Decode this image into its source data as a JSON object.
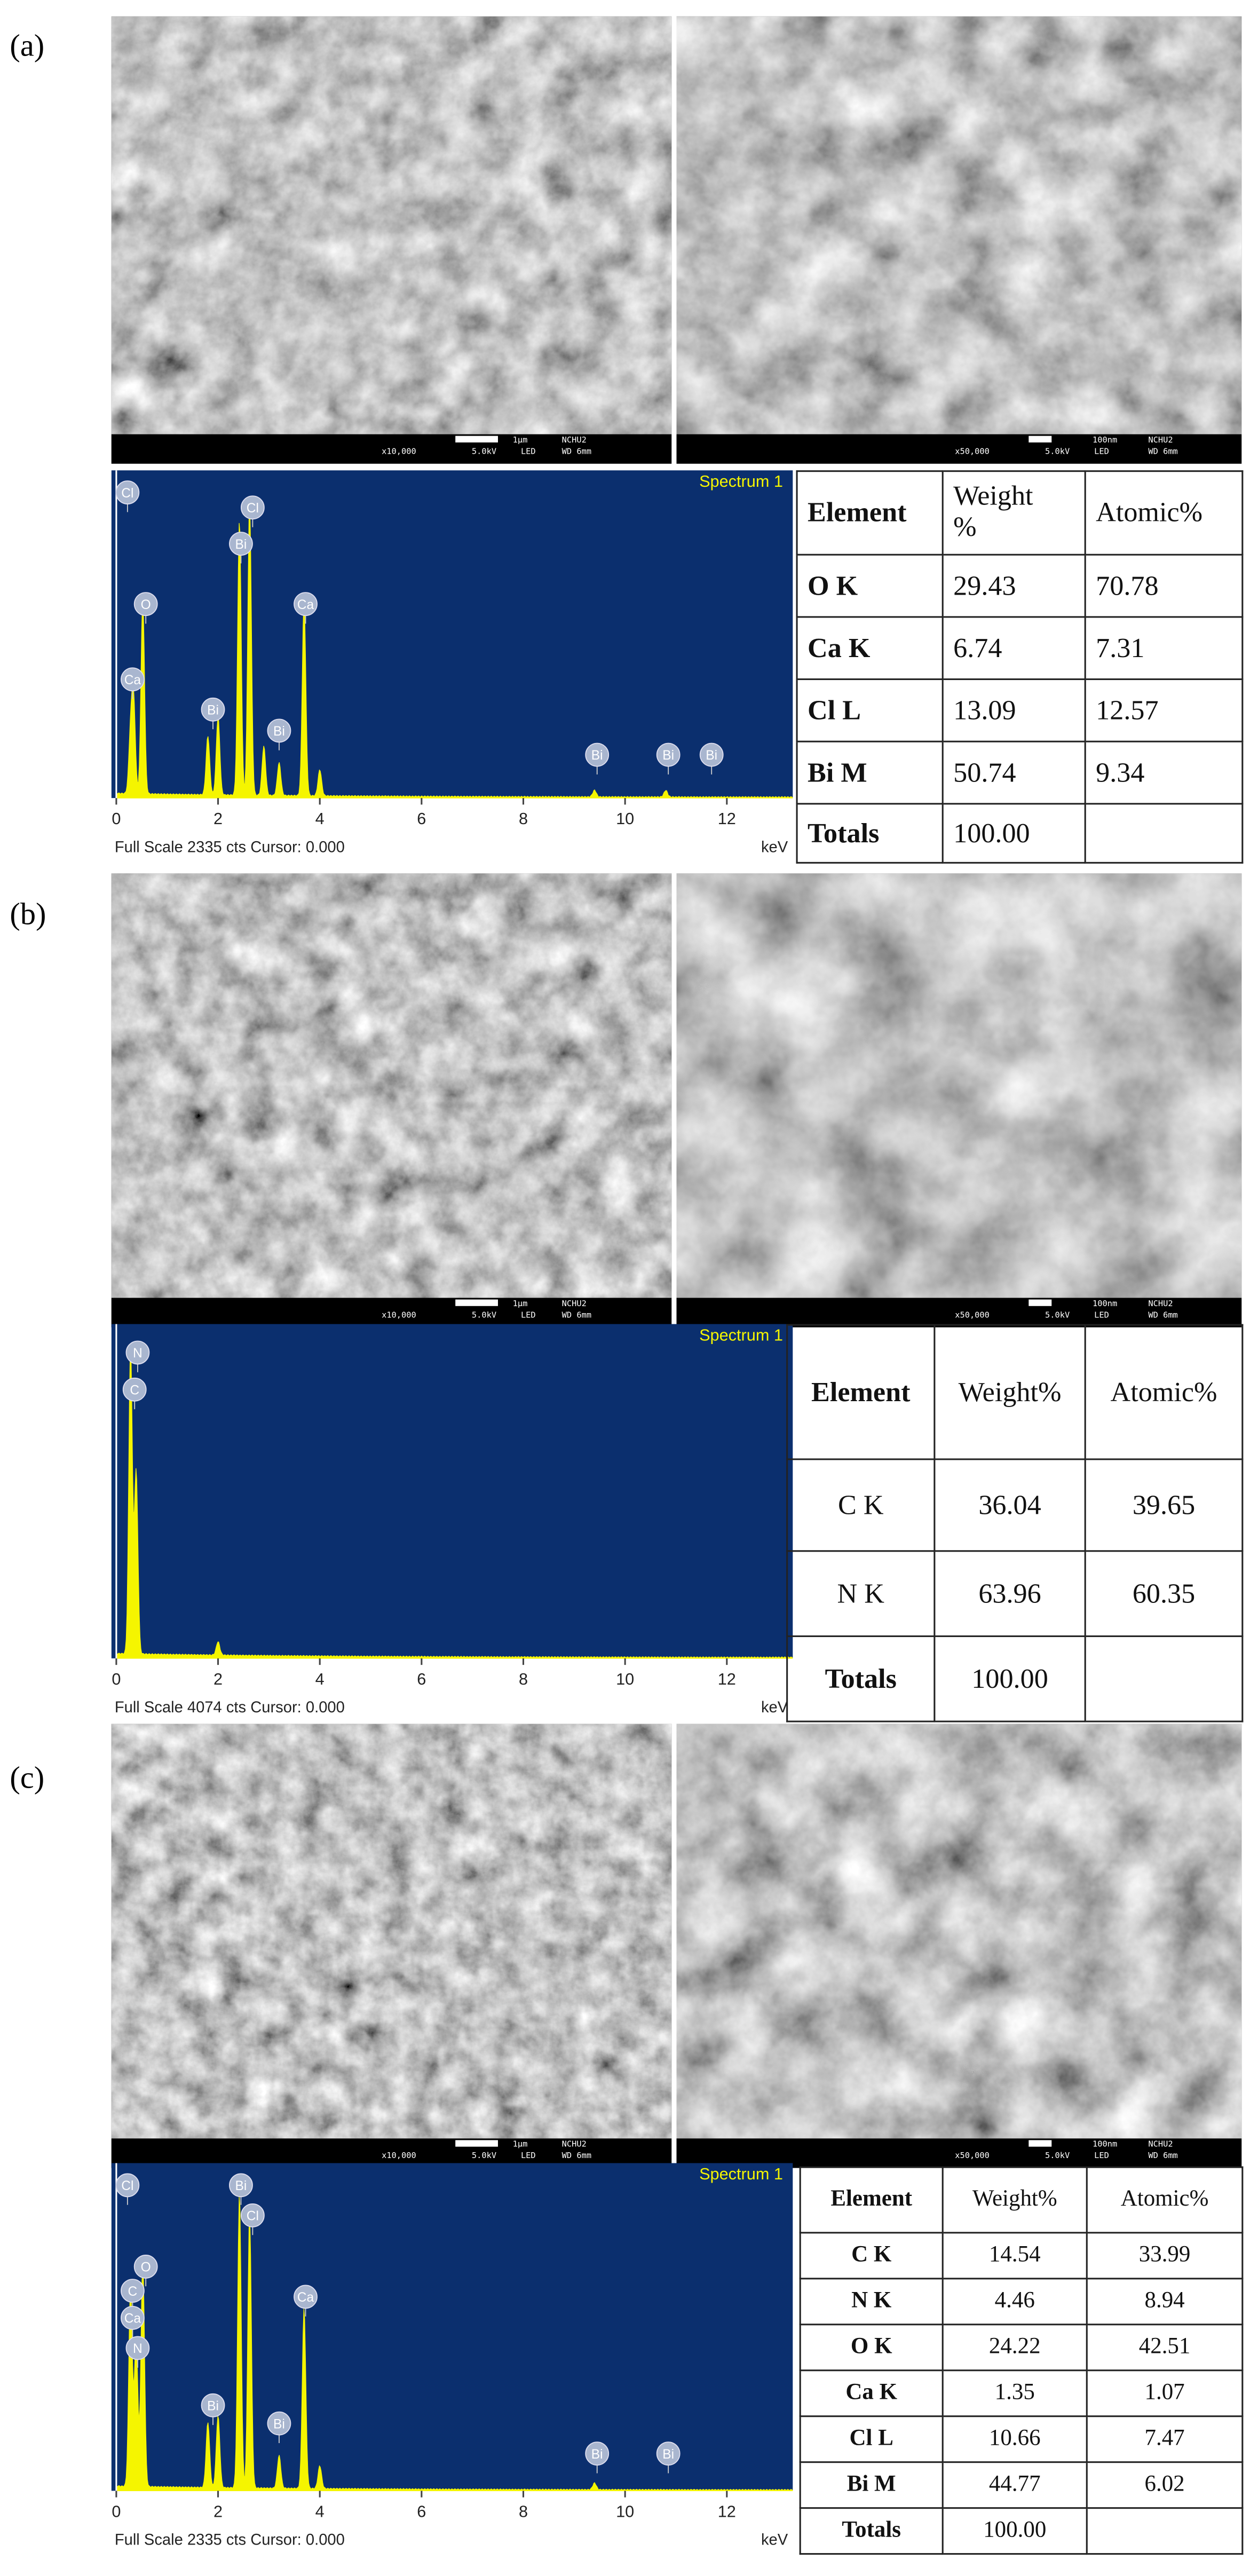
{
  "panels": [
    {
      "label": "(a)",
      "sem": [
        {
          "mag": "x10,000",
          "kv": "5.0kV",
          "det": "LED",
          "scale": "1μm",
          "id": "NCHU2",
          "wd": "WD 6mm"
        },
        {
          "mag": "x50,000",
          "kv": "5.0kV",
          "det": "LED",
          "scale": "100nm",
          "id": "NCHU2",
          "wd": "WD 6mm"
        }
      ],
      "spectrum": {
        "title": "Spectrum 1",
        "footer": "Full Scale 2335 cts Cursor: 0.000",
        "unit": "keV",
        "xlim": [
          0,
          13.2
        ],
        "xticks": [
          0,
          2,
          4,
          6,
          8,
          10,
          12
        ],
        "peak_labels": [
          "Cl",
          "Bi",
          "Cl",
          "O",
          "Ca",
          "Ca",
          "Bi",
          "Bi",
          "Bi",
          "Bi",
          "Bi"
        ]
      },
      "table": {
        "header": [
          "Element",
          "Weight %",
          "Atomic%"
        ],
        "rows": [
          [
            "O K",
            "29.43",
            "70.78"
          ],
          [
            "Ca K",
            "6.74",
            "7.31"
          ],
          [
            "Cl L",
            "13.09",
            "12.57"
          ],
          [
            "Bi M",
            "50.74",
            "9.34"
          ],
          [
            "Totals",
            "100.00",
            null
          ]
        ]
      }
    },
    {
      "label": "(b)",
      "sem": [
        {
          "mag": "x10,000",
          "kv": "5.0kV",
          "det": "LED",
          "scale": "1μm",
          "id": "NCHU2",
          "wd": "WD 6mm"
        },
        {
          "mag": "x50,000",
          "kv": "5.0kV",
          "det": "LED",
          "scale": "100nm",
          "id": "NCHU2",
          "wd": "WD 6mm"
        }
      ],
      "spectrum": {
        "title": "Spectrum 1",
        "footer": "Full Scale 4074 cts Cursor: 0.000",
        "unit": "keV",
        "xlim": [
          0,
          13.2
        ],
        "xticks": [
          0,
          2,
          4,
          6,
          8,
          10,
          12
        ],
        "peak_labels": [
          "N",
          "C"
        ]
      },
      "table": {
        "header": [
          "Element",
          "Weight%",
          "Atomic%"
        ],
        "rows": [
          [
            "C K",
            "36.04",
            "39.65"
          ],
          [
            "N K",
            "63.96",
            "60.35"
          ],
          [
            "Totals",
            "100.00",
            null
          ]
        ]
      }
    },
    {
      "label": "(c)",
      "sem": [
        {
          "mag": "x10,000",
          "kv": "5.0kV",
          "det": "LED",
          "scale": "1μm",
          "id": "NCHU2",
          "wd": "WD 6mm"
        },
        {
          "mag": "x50,000",
          "kv": "5.0kV",
          "det": "LED",
          "scale": "100nm",
          "id": "NCHU2",
          "wd": "WD 6mm"
        }
      ],
      "spectrum": {
        "title": "Spectrum 1",
        "footer": "Full Scale 2335 cts Cursor: 0.000",
        "unit": "keV",
        "xlim": [
          0,
          13.2
        ],
        "xticks": [
          0,
          2,
          4,
          6,
          8,
          10,
          12
        ],
        "peak_labels": [
          "Cl",
          "Bi",
          "Cl",
          "O",
          "C",
          "Ca",
          "N",
          "Ca",
          "Bi",
          "Bi",
          "Bi",
          "Bi"
        ]
      },
      "table": {
        "header": [
          "Element",
          "Weight%",
          "Atomic%"
        ],
        "rows": [
          [
            "C K",
            "14.54",
            "33.99"
          ],
          [
            "N K",
            "4.46",
            "8.94"
          ],
          [
            "O K",
            "24.22",
            "42.51"
          ],
          [
            "Ca K",
            "1.35",
            "1.07"
          ],
          [
            "Cl L",
            "10.66",
            "7.47"
          ],
          [
            "Bi M",
            "44.77",
            "6.02"
          ],
          [
            "Totals",
            "100.00",
            null
          ]
        ]
      }
    }
  ]
}
